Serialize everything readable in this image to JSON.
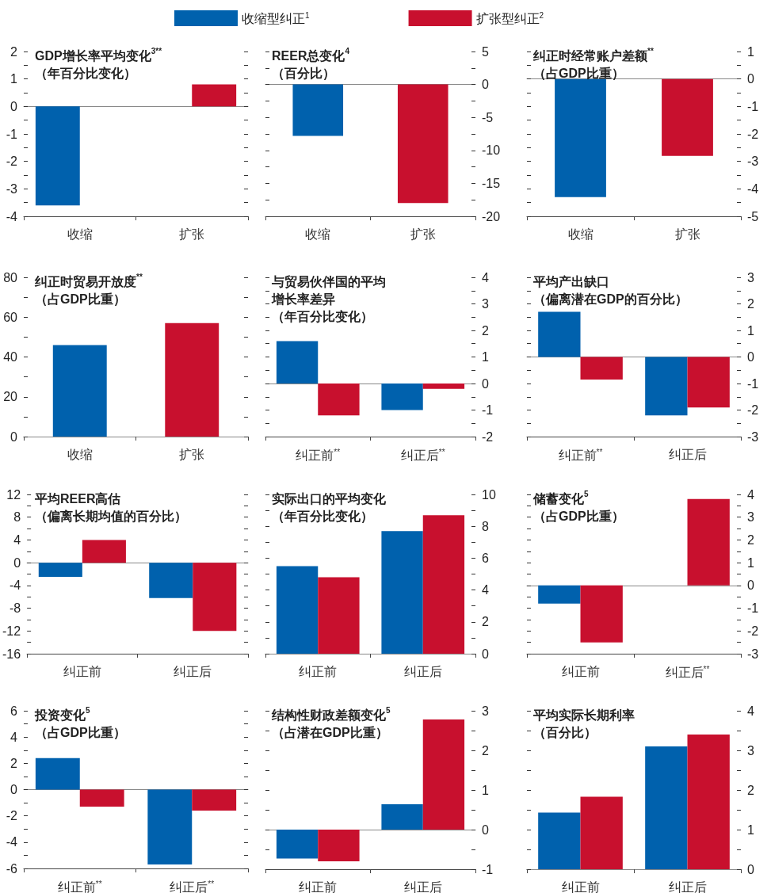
{
  "chart_data": [
    {
      "type": "bar",
      "title": "GDP增长率平均变化$^{3**}$",
      "subtitle": "（年百分比变化）",
      "categories": [
        "收缩",
        "扩张"
      ],
      "legend": "top",
      "series": [
        {
          "name": "收缩型纠正$^{1}$",
          "color": "#0061ad",
          "values": [
            -3.6,
            null
          ]
        },
        {
          "name": "扩张型纠正$^{2}$",
          "color": "#c8102e",
          "values": [
            null,
            0.8
          ]
        }
      ],
      "ylim": [
        -4,
        2
      ],
      "yticks": [
        -4,
        {
          "value": -3.5,
          "label": null
        },
        -3,
        {
          "value": -2.5,
          "label": null
        },
        -2,
        {
          "value": -1.5,
          "label": null
        },
        -1,
        {
          "value": -0.5,
          "label": null
        },
        0,
        {
          "value": 0.5,
          "label": null
        },
        1,
        {
          "value": 1.5,
          "label": null
        },
        2
      ]
    },
    {
      "type": "bar",
      "title": "REER总变化$^{4}$",
      "subtitle": "（百分比）",
      "categories": [
        "收缩",
        "扩张"
      ],
      "values": [
        -7.8,
        -18.0
      ],
      "colors": [
        "#0061ad",
        "#c8102e"
      ],
      "ylim": [
        -20,
        5
      ],
      "yticks": [
        -20,
        {
          "value": -17.5,
          "label": null
        },
        -15,
        {
          "value": -12.5,
          "label": null
        },
        -10,
        {
          "value": -7.5,
          "label": null
        },
        -5,
        {
          "value": -2.5,
          "label": null
        },
        0,
        {
          "value": 2.5,
          "label": null
        },
        5
      ]
    },
    {
      "type": "bar",
      "title": "纠正时经常账户差额$^{**}$",
      "subtitle": "（占GDP比重）",
      "categories": [
        "收缩",
        "扩张"
      ],
      "values": [
        -4.3,
        -2.8
      ],
      "colors": [
        "#0061ad",
        "#c8102e"
      ],
      "ylim": [
        -5,
        1
      ],
      "yticks": [
        -5,
        {
          "value": -4.5,
          "label": null
        },
        -4,
        {
          "value": -3.5,
          "label": null
        },
        -3,
        {
          "value": -2.5,
          "label": null
        },
        -2,
        {
          "value": -1.5,
          "label": null
        },
        -1,
        {
          "value": -0.5,
          "label": null
        },
        0,
        {
          "value": 0.5,
          "label": null
        },
        1
      ]
    },
    {
      "type": "bar",
      "title": "纠正时贸易开放度$^{**}$",
      "subtitle": "（占GDP比重）",
      "categories": [
        "收缩",
        "扩张"
      ],
      "values": [
        46,
        57
      ],
      "colors": [
        "#0061ad",
        "#c8102e"
      ],
      "ylim": [
        0,
        80
      ],
      "yticks": [
        0,
        {
          "value": 10,
          "label": null
        },
        20,
        {
          "value": 30,
          "label": null
        },
        40,
        {
          "value": 50,
          "label": null
        },
        60,
        {
          "value": 70,
          "label": null
        },
        80
      ]
    },
    {
      "type": "bar",
      "title": "与贸易伙伴国的平均增长率差异",
      "subtitle": "（年百分比变化）",
      "categories": [
        "纠正前$^{**}$",
        "纠正后$^{**}$"
      ],
      "series": [
        {
          "color": "#0061ad",
          "values": [
            1.6,
            -1.0
          ]
        },
        {
          "color": "#c8102e",
          "values": [
            -1.2,
            -0.2
          ]
        }
      ],
      "ylim": [
        -2,
        4
      ],
      "yticks": [
        -2,
        {
          "value": -1.5,
          "label": null
        },
        -1,
        {
          "value": -0.5,
          "label": null
        },
        0,
        {
          "value": 0.5,
          "label": null
        },
        1,
        {
          "value": 1.5,
          "label": null
        },
        2,
        {
          "value": 2.5,
          "label": null
        },
        3,
        {
          "value": 3.5,
          "label": null
        },
        4
      ]
    },
    {
      "type": "bar",
      "title": "平均产出缺口",
      "subtitle": "（偏离潜在GDP的百分比）",
      "categories": [
        "纠正前$^{**}$",
        "纠正后"
      ],
      "series": [
        {
          "color": "#0061ad",
          "values": [
            1.7,
            -2.2
          ]
        },
        {
          "color": "#c8102e",
          "values": [
            -0.85,
            -1.9
          ]
        }
      ],
      "ylim": [
        -3,
        3
      ],
      "yticks": [
        -3,
        {
          "value": -2.5,
          "label": null
        },
        -2,
        {
          "value": -1.5,
          "label": null
        },
        -1,
        {
          "value": -0.5,
          "label": null
        },
        0,
        {
          "value": 0.5,
          "label": null
        },
        1,
        {
          "value": 1.5,
          "label": null
        },
        2,
        {
          "value": 2.5,
          "label": null
        },
        3
      ]
    },
    {
      "type": "bar",
      "title": "平均REER高估",
      "subtitle": "（偏离长期均值的百分比）",
      "categories": [
        "纠正前",
        "纠正后"
      ],
      "series": [
        {
          "color": "#0061ad",
          "values": [
            -2.5,
            -6.2
          ]
        },
        {
          "color": "#c8102e",
          "values": [
            4.0,
            -12.0
          ]
        }
      ],
      "ylim": [
        -16,
        12
      ],
      "yticks": [
        -16,
        {
          "value": -14,
          "label": null
        },
        -12,
        {
          "value": -10,
          "label": null
        },
        -8,
        {
          "value": -6,
          "label": null
        },
        -4,
        {
          "value": -2,
          "label": null
        },
        0,
        {
          "value": 2,
          "label": null
        },
        4,
        {
          "value": 6,
          "label": null
        },
        8,
        {
          "value": 10,
          "label": null
        },
        12
      ]
    },
    {
      "type": "bar",
      "title": "实际出口的平均变化",
      "subtitle": "（年百分比变化）",
      "categories": [
        "纠正前",
        "纠正后"
      ],
      "series": [
        {
          "color": "#0061ad",
          "values": [
            5.5,
            7.7
          ]
        },
        {
          "color": "#c8102e",
          "values": [
            4.8,
            8.7
          ]
        }
      ],
      "ylim": [
        0,
        10
      ],
      "yticks": [
        0,
        {
          "value": 1,
          "label": null
        },
        2,
        {
          "value": 3,
          "label": null
        },
        4,
        {
          "value": 5,
          "label": null
        },
        6,
        {
          "value": 7,
          "label": null
        },
        8,
        {
          "value": 9,
          "label": null
        },
        10
      ]
    },
    {
      "type": "bar",
      "title": "储蓄变化$^{5}$",
      "subtitle": "（占GDP比重）",
      "categories": [
        "纠正前",
        "纠正后$^{**}$"
      ],
      "series": [
        {
          "color": "#0061ad",
          "values": [
            -0.8,
            null
          ]
        },
        {
          "color": "#c8102e",
          "values": [
            -2.5,
            3.8
          ]
        }
      ],
      "ylim": [
        -3,
        4
      ],
      "yticks": [
        -3,
        {
          "value": -2.5,
          "label": null
        },
        -2,
        {
          "value": -1.5,
          "label": null
        },
        -1,
        {
          "value": -0.5,
          "label": null
        },
        0,
        {
          "value": 0.5,
          "label": null
        },
        1,
        {
          "value": 1.5,
          "label": null
        },
        2,
        {
          "value": 2.5,
          "label": null
        },
        3,
        {
          "value": 3.5,
          "label": null
        },
        4
      ]
    },
    {
      "type": "bar",
      "title": "投资变化$^{5}$",
      "subtitle": "（占GDP比重）",
      "categories": [
        "纠正前$^{**}$",
        "纠正后$^{**}$"
      ],
      "series": [
        {
          "color": "#0061ad",
          "values": [
            2.4,
            -5.7
          ]
        },
        {
          "color": "#c8102e",
          "values": [
            -1.3,
            -1.6
          ]
        }
      ],
      "ylim": [
        -6,
        6
      ],
      "yticks": [
        -6,
        {
          "value": -5,
          "label": null
        },
        -4,
        {
          "value": -3,
          "label": null
        },
        -2,
        {
          "value": -1,
          "label": null
        },
        0,
        {
          "value": 1,
          "label": null
        },
        2,
        {
          "value": 3,
          "label": null
        },
        4,
        {
          "value": 5,
          "label": null
        },
        6
      ]
    },
    {
      "type": "bar",
      "title": "结构性财政差额变化$^{5}$",
      "subtitle": "（占潜在GDP比重）",
      "categories": [
        "纠正前",
        "纠正后"
      ],
      "series": [
        {
          "color": "#0061ad",
          "values": [
            -0.73,
            0.64
          ]
        },
        {
          "color": "#c8102e",
          "values": [
            -0.8,
            2.78
          ]
        }
      ],
      "ylim": [
        -1,
        3
      ],
      "yticks": [
        -1,
        {
          "value": -0.5,
          "label": null
        },
        0,
        {
          "value": 0.5,
          "label": null
        },
        1,
        {
          "value": 1.5,
          "label": null
        },
        2,
        {
          "value": 2.5,
          "label": null
        },
        3
      ]
    },
    {
      "type": "bar",
      "title": "平均实际长期利率",
      "subtitle": "（百分比）",
      "categories": [
        "纠正前",
        "纠正后"
      ],
      "series": [
        {
          "color": "#0061ad",
          "values": [
            1.43,
            3.1
          ]
        },
        {
          "color": "#c8102e",
          "values": [
            1.83,
            3.4
          ]
        }
      ],
      "ylim": [
        0,
        4
      ],
      "yticks": [
        0,
        {
          "value": 0.5,
          "label": null
        },
        1,
        {
          "value": 1.5,
          "label": null
        },
        2,
        {
          "value": 2.5,
          "label": null
        },
        3,
        {
          "value": 3.5,
          "label": null
        },
        4
      ]
    }
  ]
}
